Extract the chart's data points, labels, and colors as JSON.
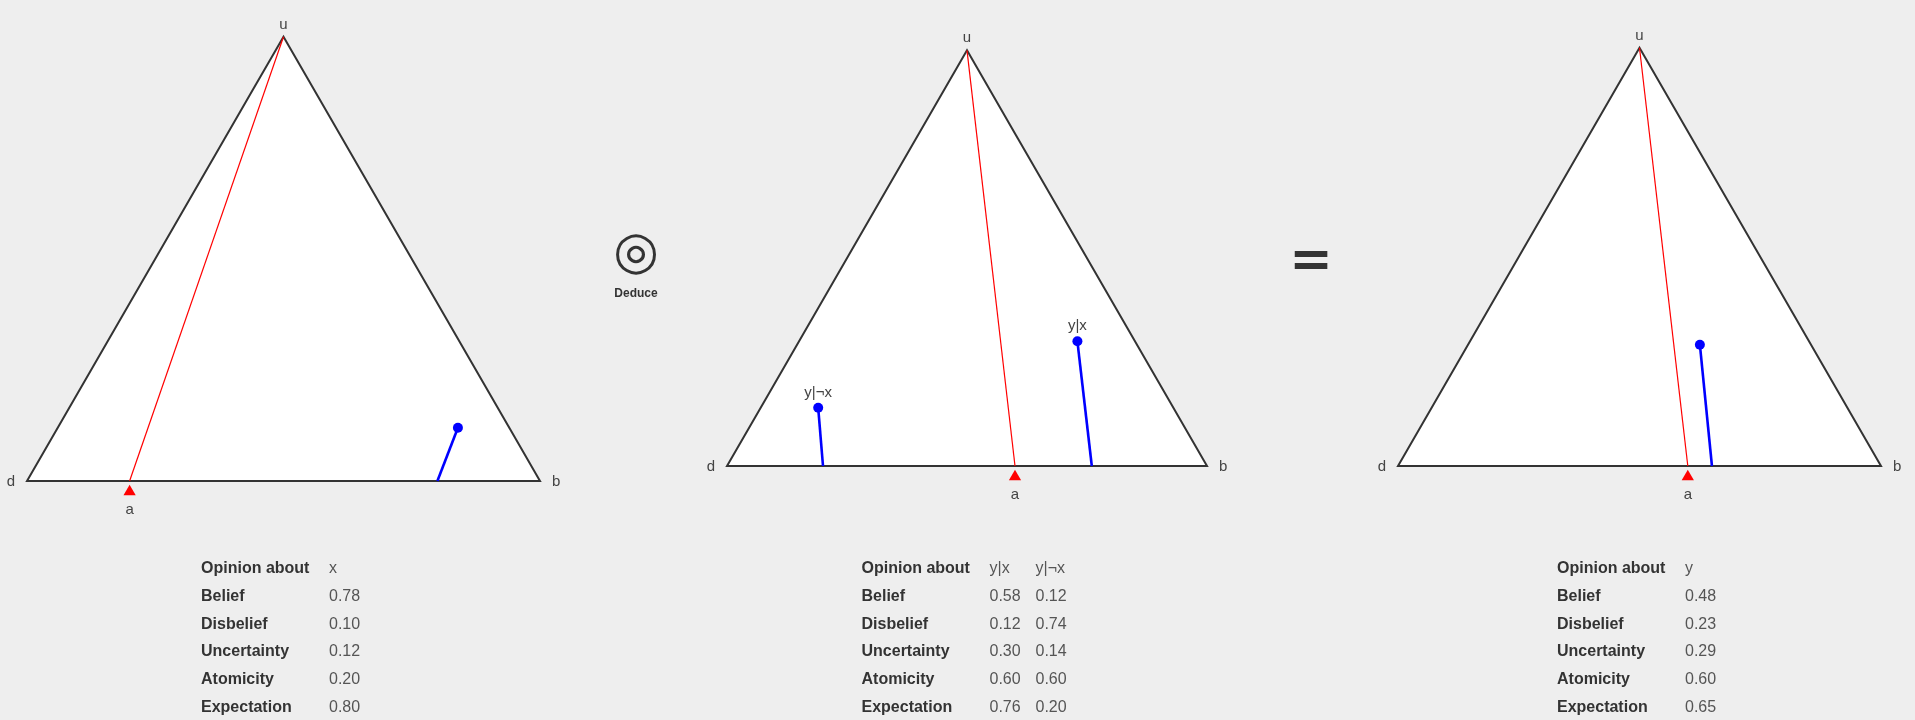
{
  "chart_data": [
    {
      "type": "other",
      "categories": [
        "Belief",
        "Disbelief",
        "Uncertainty",
        "Atomicity",
        "Expectation"
      ],
      "legend_title": "Opinion about",
      "series": [
        {
          "name": "x",
          "colors": [
            "#0000ff",
            "#0000ff",
            "#0000ff",
            "#ff0000",
            "#0000ff"
          ],
          "values": [
            0.78,
            0.1,
            0.12,
            0.2,
            0.8
          ],
          "value_labels": [
            "0.78",
            "0.10",
            "0.12",
            "0.20",
            "0.80"
          ]
        }
      ],
      "annotations": [
        "u",
        "d",
        "b",
        "a"
      ]
    },
    {
      "type": "other",
      "categories": [
        "Belief",
        "Disbelief",
        "Uncertainty",
        "Atomicity",
        "Expectation"
      ],
      "legend_title": "Opinion about",
      "series": [
        {
          "name": "y|x",
          "colors": [
            "#0000ff",
            "#0000ff",
            "#0000ff",
            "#ff0000",
            "#0000ff"
          ],
          "values": [
            0.58,
            0.12,
            0.3,
            0.6,
            0.76
          ],
          "value_labels": [
            "0.58",
            "0.12",
            "0.30",
            "0.60",
            "0.76"
          ]
        },
        {
          "name": "y|¬x",
          "colors": [
            "#0000ff",
            "#0000ff",
            "#0000ff",
            "#ff0000",
            "#0000ff"
          ],
          "values": [
            0.12,
            0.74,
            0.14,
            0.6,
            0.2
          ],
          "value_labels": [
            "0.12",
            "0.74",
            "0.14",
            "0.60",
            "0.20"
          ]
        }
      ],
      "annotations": [
        "u",
        "d",
        "b",
        "a",
        "◎",
        "Deduce"
      ]
    },
    {
      "type": "other",
      "categories": [
        "Belief",
        "Disbelief",
        "Uncertainty",
        "Atomicity",
        "Expectation"
      ],
      "legend_title": "Opinion about",
      "series": [
        {
          "name": "y",
          "colors": [
            "#0000ff",
            "#0000ff",
            "#0000ff",
            "#ff0000",
            "#0000ff"
          ],
          "values": [
            0.48,
            0.23,
            0.29,
            0.6,
            0.65
          ],
          "value_labels": [
            "0.48",
            "0.23",
            "0.29",
            "0.60",
            "0.65"
          ]
        }
      ],
      "annotations": [
        "u",
        "d",
        "b",
        "a",
        "="
      ]
    }
  ]
}
